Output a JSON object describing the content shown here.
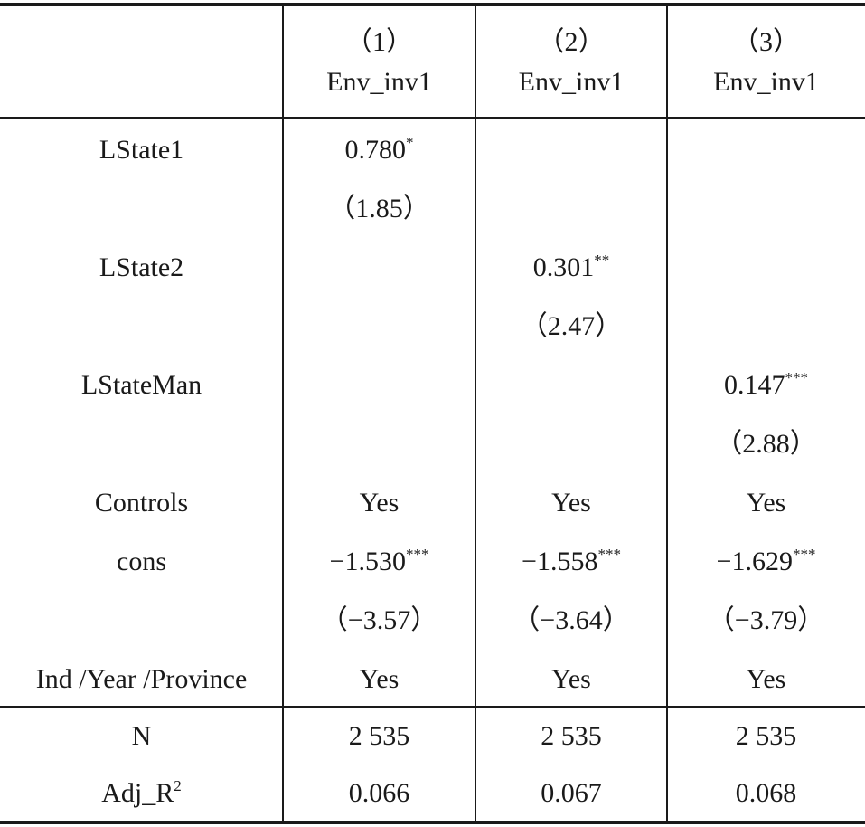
{
  "table": {
    "columns": [
      {
        "number": "（1）",
        "label": "Env_inv1"
      },
      {
        "number": "（2）",
        "label": "Env_inv1"
      },
      {
        "number": "（3）",
        "label": "Env_inv1"
      }
    ],
    "body": [
      {
        "label": "LState1",
        "cells": [
          {
            "coef": "0.780",
            "stars": "*",
            "t": "（1.85）"
          },
          null,
          null
        ]
      },
      {
        "label": "LState2",
        "cells": [
          null,
          {
            "coef": "0.301",
            "stars": "**",
            "t": "（2.47）"
          },
          null
        ]
      },
      {
        "label": "LStateMan",
        "cells": [
          null,
          null,
          {
            "coef": "0.147",
            "stars": "***",
            "t": "（2.88）"
          }
        ]
      },
      {
        "label": "Controls",
        "cells": [
          "Yes",
          "Yes",
          "Yes"
        ]
      },
      {
        "label": "cons",
        "cells": [
          {
            "coef": "−1.530",
            "stars": "***",
            "t": "（−3.57）"
          },
          {
            "coef": "−1.558",
            "stars": "***",
            "t": "（−3.64）"
          },
          {
            "coef": "−1.629",
            "stars": "***",
            "t": "（−3.79）"
          }
        ]
      },
      {
        "label": "Ind /Year /Province",
        "cells": [
          "Yes",
          "Yes",
          "Yes"
        ]
      }
    ],
    "footer": [
      {
        "label": "N",
        "cells": [
          "2 535",
          "2 535",
          "2 535"
        ]
      },
      {
        "label": "Adj_R",
        "label_sup": "2",
        "cells": [
          "0.066",
          "0.067",
          "0.068"
        ]
      }
    ]
  }
}
